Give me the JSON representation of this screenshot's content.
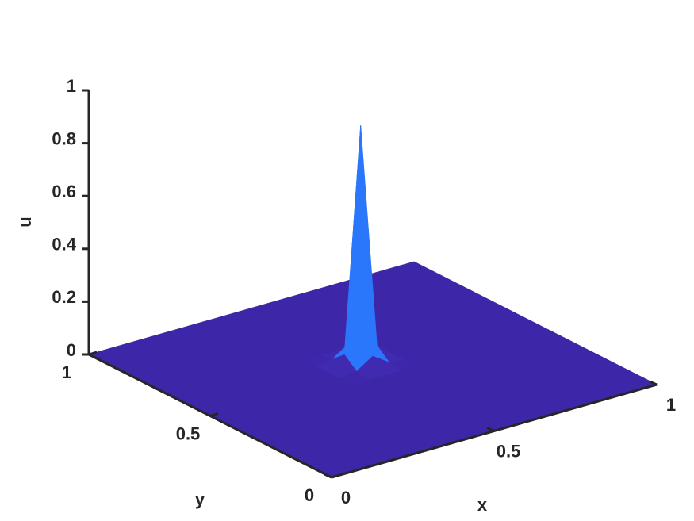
{
  "chart_data": {
    "type": "surface",
    "colormap": "parula",
    "x_label": "x",
    "y_label": "y",
    "z_label": "u",
    "x": [
      0,
      0.4,
      0.45,
      0.5,
      0.55,
      0.6,
      1
    ],
    "y": [
      0,
      0.45,
      0.5,
      0.55,
      0.6,
      0.65,
      1
    ],
    "z": [
      [
        0,
        0,
        0,
        0,
        0,
        0,
        0
      ],
      [
        0,
        0,
        0,
        0,
        0,
        0,
        0
      ],
      [
        0,
        0,
        0.01,
        0.05,
        0.01,
        0,
        0
      ],
      [
        0,
        0,
        0.05,
        0.9,
        0.05,
        0,
        0
      ],
      [
        0,
        0,
        0.01,
        0.05,
        0.01,
        0,
        0
      ],
      [
        0,
        0,
        0,
        0,
        0,
        0,
        0
      ],
      [
        0,
        0,
        0,
        0,
        0,
        0,
        0
      ]
    ],
    "xlim": [
      0,
      1
    ],
    "ylim": [
      0,
      1
    ],
    "zlim": [
      0,
      1
    ],
    "xticks": [
      0,
      0.5,
      1
    ],
    "yticks": [
      0,
      0.5,
      1
    ],
    "zticks": [
      0,
      0.2,
      0.4,
      0.6,
      0.8,
      1
    ]
  }
}
